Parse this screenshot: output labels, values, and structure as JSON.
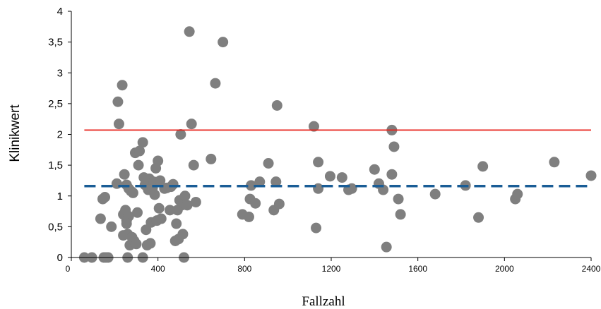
{
  "chart_data": {
    "type": "scatter",
    "title": "",
    "xlabel": "Fallzahl",
    "ylabel": "Klinikwert",
    "xlim": [
      0,
      2400
    ],
    "ylim": [
      0,
      4
    ],
    "x_ticks": [
      0,
      400,
      800,
      1200,
      1600,
      2000,
      2400
    ],
    "x_tick_labels": [
      "0",
      "400",
      "800",
      "1200",
      "1600",
      "2000",
      "2400"
    ],
    "y_ticks": [
      0,
      0.5,
      1,
      1.5,
      2,
      2.5,
      3,
      3.5,
      4
    ],
    "y_tick_labels": [
      "0",
      "0,5",
      "1",
      "1,5",
      "2",
      "2,5",
      "3",
      "3,5",
      "4"
    ],
    "grid": false,
    "legend": "none",
    "reference_lines": [
      {
        "style": "solid",
        "color": "#e8221b",
        "y": 2.07,
        "x_range": [
          60,
          2400
        ]
      },
      {
        "style": "dashed",
        "color": "#1a5d96",
        "y": 1.16,
        "x_range": [
          60,
          2400
        ]
      }
    ],
    "series": [
      {
        "color": "#7f7f7f",
        "points": [
          [
            60,
            0
          ],
          [
            95,
            0
          ],
          [
            150,
            0
          ],
          [
            170,
            0
          ],
          [
            160,
            0
          ],
          [
            260,
            0
          ],
          [
            330,
            0
          ],
          [
            520,
            0
          ],
          [
            135,
            0.63
          ],
          [
            145,
            0.95
          ],
          [
            155,
            0.98
          ],
          [
            185,
            0.5
          ],
          [
            210,
            1.2
          ],
          [
            215,
            2.53
          ],
          [
            220,
            2.17
          ],
          [
            235,
            2.8
          ],
          [
            240,
            0.7
          ],
          [
            245,
            1.35
          ],
          [
            255,
            1.18
          ],
          [
            250,
            0.77
          ],
          [
            255,
            0.6
          ],
          [
            260,
            0.38
          ],
          [
            265,
            0.67
          ],
          [
            240,
            0.36
          ],
          [
            255,
            0.55
          ],
          [
            265,
            1.12
          ],
          [
            270,
            0.2
          ],
          [
            275,
            1.08
          ],
          [
            280,
            0.33
          ],
          [
            285,
            1.05
          ],
          [
            290,
            0.27
          ],
          [
            300,
            0.22
          ],
          [
            295,
            1.7
          ],
          [
            305,
            0.73
          ],
          [
            310,
            1.5
          ],
          [
            315,
            1.73
          ],
          [
            330,
            1.87
          ],
          [
            335,
            1.3
          ],
          [
            340,
            1.18
          ],
          [
            345,
            0.45
          ],
          [
            350,
            0.2
          ],
          [
            355,
            1.1
          ],
          [
            360,
            1.28
          ],
          [
            365,
            0.23
          ],
          [
            368,
            0.57
          ],
          [
            375,
            1.13
          ],
          [
            380,
            1.23
          ],
          [
            385,
            1.02
          ],
          [
            390,
            1.45
          ],
          [
            395,
            0.6
          ],
          [
            400,
            1.57
          ],
          [
            405,
            0.8
          ],
          [
            410,
            1.25
          ],
          [
            415,
            0.63
          ],
          [
            430,
            1.12
          ],
          [
            440,
            1.13
          ],
          [
            455,
            0.77
          ],
          [
            460,
            1.15
          ],
          [
            470,
            1.19
          ],
          [
            480,
            0.27
          ],
          [
            485,
            0.55
          ],
          [
            490,
            0.77
          ],
          [
            495,
            0.3
          ],
          [
            500,
            0.93
          ],
          [
            505,
            2.0
          ],
          [
            510,
            0.85
          ],
          [
            515,
            0.38
          ],
          [
            520,
            0.88
          ],
          [
            525,
            1.0
          ],
          [
            535,
            0.85
          ],
          [
            545,
            3.67
          ],
          [
            555,
            2.17
          ],
          [
            565,
            1.5
          ],
          [
            575,
            0.9
          ],
          [
            645,
            1.6
          ],
          [
            665,
            2.83
          ],
          [
            700,
            3.5
          ],
          [
            790,
            0.7
          ],
          [
            820,
            0.66
          ],
          [
            830,
            1.17
          ],
          [
            825,
            0.95
          ],
          [
            850,
            0.88
          ],
          [
            870,
            1.23
          ],
          [
            910,
            1.53
          ],
          [
            935,
            0.77
          ],
          [
            945,
            1.23
          ],
          [
            950,
            2.47
          ],
          [
            960,
            0.87
          ],
          [
            1120,
            2.13
          ],
          [
            1130,
            0.48
          ],
          [
            1140,
            1.12
          ],
          [
            1140,
            1.55
          ],
          [
            1195,
            1.32
          ],
          [
            1250,
            1.3
          ],
          [
            1280,
            1.1
          ],
          [
            1295,
            1.12
          ],
          [
            1400,
            1.43
          ],
          [
            1420,
            1.2
          ],
          [
            1440,
            1.1
          ],
          [
            1455,
            0.17
          ],
          [
            1480,
            2.07
          ],
          [
            1480,
            1.35
          ],
          [
            1490,
            1.8
          ],
          [
            1510,
            0.95
          ],
          [
            1520,
            0.7
          ],
          [
            1680,
            1.03
          ],
          [
            1820,
            1.17
          ],
          [
            1880,
            0.65
          ],
          [
            1900,
            1.48
          ],
          [
            2050,
            0.95
          ],
          [
            2060,
            1.03
          ],
          [
            2230,
            1.55
          ],
          [
            2400,
            1.33
          ]
        ]
      }
    ]
  }
}
